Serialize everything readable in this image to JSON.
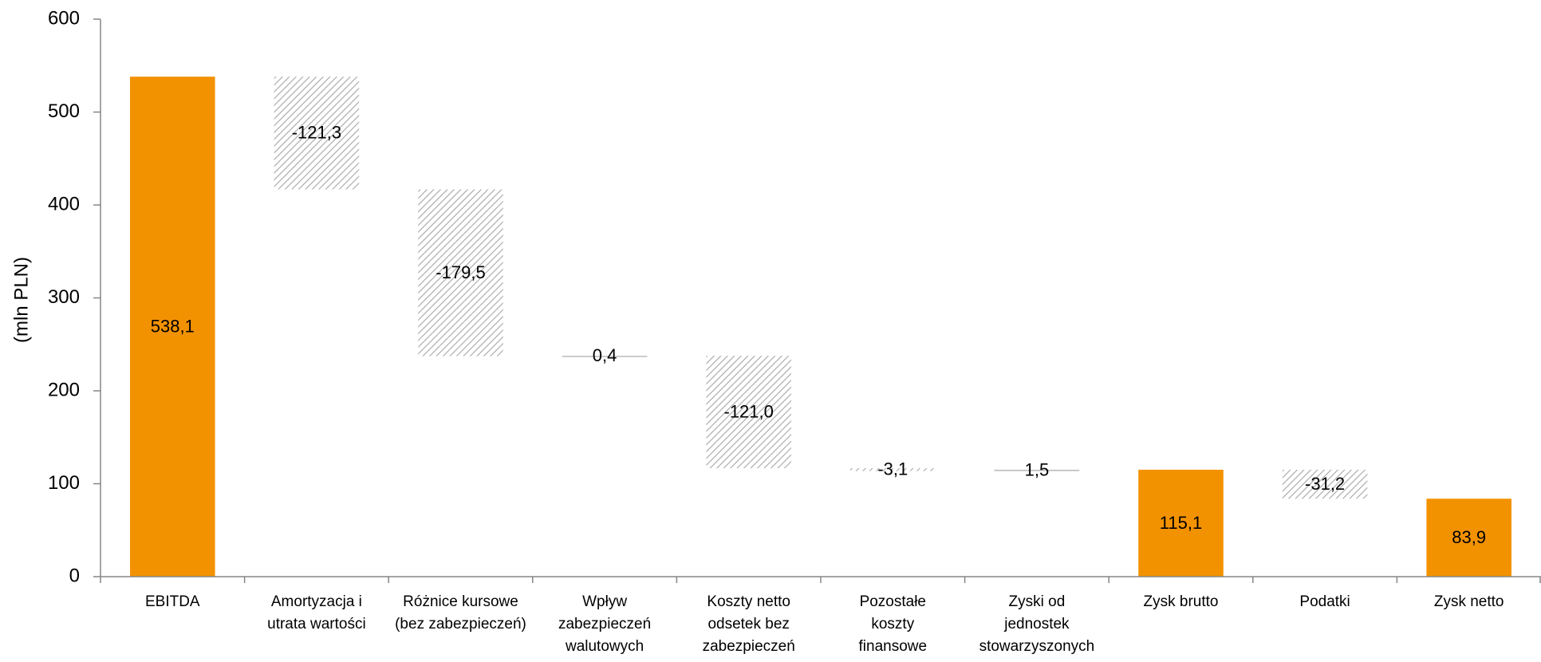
{
  "chart_data": {
    "type": "bar",
    "subtype": "waterfall",
    "ylabel": "(mln PLN)",
    "ylim": [
      0,
      600
    ],
    "yticks": [
      "0",
      "100",
      "200",
      "300",
      "400",
      "500",
      "600"
    ],
    "ytick_values": [
      0,
      100,
      200,
      300,
      400,
      500,
      600
    ],
    "categories": [
      [
        "EBITDA"
      ],
      [
        "Amortyzacja i",
        "utrata wartości"
      ],
      [
        "Różnice kursowe",
        "(bez zabezpieczeń)"
      ],
      [
        "Wpływ",
        "zabezpieczeń",
        "walutowych"
      ],
      [
        "Koszty netto",
        "odsetek bez",
        "zabezpieczeń"
      ],
      [
        "Pozostałe",
        "koszty",
        "finansowe"
      ],
      [
        "Zyski od",
        "jednostek",
        "stowarzyszonych"
      ],
      [
        "Zysk brutto"
      ],
      [
        "Podatki"
      ],
      [
        "Zysk netto"
      ]
    ],
    "values": [
      538.1,
      -121.3,
      -179.5,
      0.4,
      -121.0,
      -3.1,
      1.5,
      115.1,
      -31.2,
      83.9
    ],
    "value_labels": [
      "538,1",
      "-121,3",
      "-179,5",
      "0,4",
      "-121,0",
      "-3,1",
      "1,5",
      "115,1",
      "-31,2",
      "83,9"
    ],
    "kinds": [
      "total",
      "delta",
      "delta",
      "delta",
      "delta",
      "delta",
      "delta",
      "total",
      "delta",
      "total"
    ],
    "grid": false,
    "legend": "none",
    "colors": {
      "total": "#F39200",
      "decrease_hatch": "#A6A6A6",
      "increase": "#BFBFBF",
      "axis": "#868686"
    }
  }
}
